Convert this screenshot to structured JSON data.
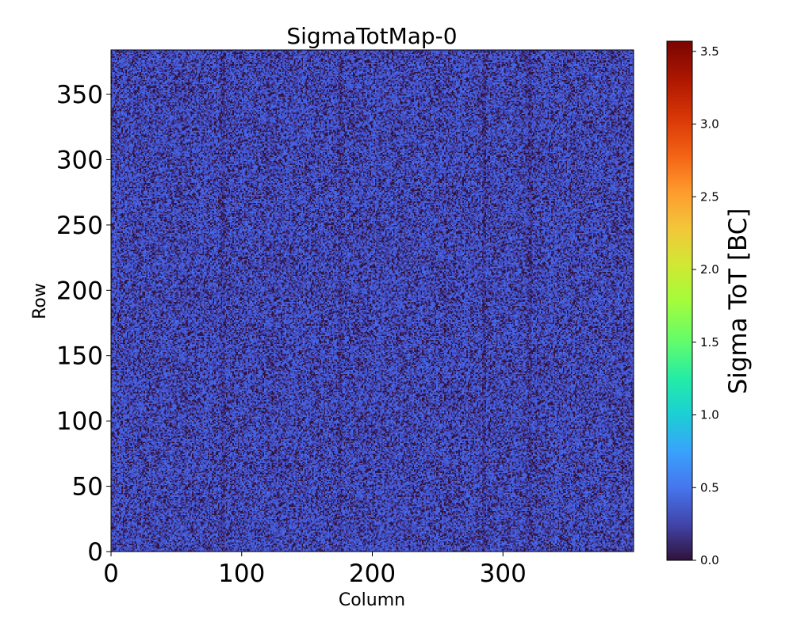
{
  "chart_data": {
    "type": "heatmap",
    "title": "SigmaTotMap-0",
    "xlabel": "Column",
    "ylabel": "Row",
    "xlim": [
      0,
      400
    ],
    "ylim": [
      0,
      384
    ],
    "x_ticks": [
      0,
      100,
      200,
      300
    ],
    "y_ticks": [
      0,
      50,
      100,
      150,
      200,
      250,
      300,
      350
    ],
    "x_tick_labels": [
      "0",
      "100",
      "200",
      "300"
    ],
    "y_tick_labels": [
      "0",
      "50",
      "100",
      "150",
      "200",
      "250",
      "300",
      "350"
    ],
    "colormap": "turbo",
    "colorbar": {
      "label": "Sigma ToT [BC]",
      "range": [
        0.0,
        3.57
      ],
      "ticks": [
        0.0,
        0.5,
        1.0,
        1.5,
        2.0,
        2.5,
        3.0,
        3.5
      ],
      "tick_labels": [
        "0.0",
        "0.5",
        "1.0",
        "1.5",
        "2.0",
        "2.5",
        "3.0",
        "3.5"
      ]
    },
    "value_distribution": {
      "typical_values": [
        0.0,
        0.1,
        0.2,
        0.3,
        0.4,
        0.45,
        0.5
      ],
      "mean_approx": 0.35
    },
    "darker_columns_approx": [
      85,
      175,
      285,
      320
    ]
  }
}
